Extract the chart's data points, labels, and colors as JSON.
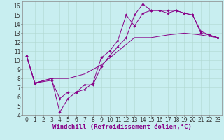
{
  "xlabel": "Windchill (Refroidissement éolien,°C)",
  "background_color": "#c8eef0",
  "line_color": "#880088",
  "xlim": [
    -0.5,
    23.5
  ],
  "ylim": [
    4,
    16.5
  ],
  "xticks": [
    0,
    1,
    2,
    3,
    4,
    5,
    6,
    7,
    8,
    9,
    10,
    11,
    12,
    13,
    14,
    15,
    16,
    17,
    18,
    19,
    20,
    21,
    22,
    23
  ],
  "yticks": [
    4,
    5,
    6,
    7,
    8,
    9,
    10,
    11,
    12,
    13,
    14,
    15,
    16
  ],
  "line1_x": [
    0,
    1,
    3,
    4,
    5,
    6,
    7,
    8,
    9,
    10,
    11,
    12,
    13,
    14,
    15,
    16,
    17,
    18,
    19,
    20,
    21,
    22,
    23
  ],
  "line1_y": [
    10.5,
    7.5,
    7.8,
    5.8,
    6.5,
    6.5,
    7.3,
    7.3,
    9.3,
    10.5,
    11.5,
    12.5,
    15.0,
    16.2,
    15.5,
    15.5,
    15.2,
    15.5,
    15.2,
    15.0,
    13.0,
    12.8,
    12.5
  ],
  "line2_x": [
    0,
    1,
    3,
    4,
    5,
    6,
    7,
    8,
    9,
    10,
    11,
    12,
    13,
    14,
    15,
    16,
    17,
    18,
    19,
    20,
    21,
    22,
    23
  ],
  "line2_y": [
    10.5,
    7.5,
    8.0,
    4.3,
    5.8,
    6.5,
    6.8,
    7.5,
    10.3,
    11.0,
    12.2,
    15.0,
    13.8,
    15.2,
    15.5,
    15.5,
    15.5,
    15.5,
    15.2,
    15.0,
    13.2,
    12.8,
    12.5
  ],
  "line3_x": [
    0,
    1,
    3,
    5,
    7,
    9,
    11,
    13,
    15,
    17,
    19,
    21,
    23
  ],
  "line3_y": [
    10.5,
    7.5,
    8.0,
    8.0,
    8.5,
    9.5,
    11.0,
    12.5,
    12.5,
    12.8,
    13.0,
    12.8,
    12.5
  ],
  "grid_color": "#b0d8d0",
  "tick_fontsize": 5.5,
  "xlabel_fontsize": 6.5
}
